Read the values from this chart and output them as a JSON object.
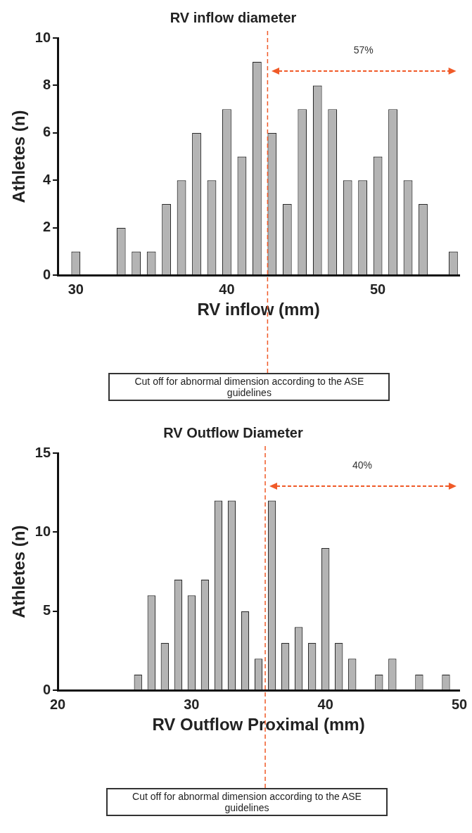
{
  "chart_data": [
    {
      "type": "bar",
      "title": "RV inflow diameter",
      "xlabel": "RV inflow (mm)",
      "ylabel": "Athletes (n)",
      "x": [
        30,
        33,
        34,
        35,
        36,
        37,
        38,
        39,
        40,
        41,
        42,
        43,
        44,
        45,
        46,
        47,
        48,
        49,
        50,
        51,
        52,
        53,
        55
      ],
      "values": [
        1,
        2,
        1,
        1,
        3,
        4,
        6,
        4,
        7,
        5,
        9,
        6,
        3,
        7,
        8,
        7,
        4,
        4,
        5,
        7,
        4,
        3,
        1
      ],
      "color": "#b4b4b4",
      "xlim": [
        28.8,
        55.4
      ],
      "xticks": [
        30,
        40,
        50
      ],
      "ylim": [
        0,
        10
      ],
      "yticks": [
        0,
        2,
        4,
        6,
        8,
        10
      ],
      "grid": false,
      "legend": false,
      "ref_lines": [
        {
          "axis": "x",
          "value": 42.7,
          "label": "Cut off for abnormal dimension according to the ASE guidelines",
          "color": "#f05a28",
          "line_style": "dashed"
        }
      ],
      "annotations": [
        "57%"
      ]
    },
    {
      "type": "bar",
      "title": "RV Outflow Diameter",
      "xlabel": "RV Outflow Proximal (mm)",
      "ylabel": "Athletes (n)",
      "x": [
        26,
        27,
        28,
        29,
        30,
        31,
        32,
        33,
        34,
        35,
        36,
        37,
        38,
        39,
        40,
        41,
        42,
        44,
        45,
        47,
        49
      ],
      "values": [
        1,
        6,
        3,
        7,
        6,
        7,
        12,
        12,
        5,
        2,
        12,
        3,
        4,
        3,
        9,
        3,
        2,
        1,
        2,
        1,
        1
      ],
      "color": "#b4b4b4",
      "xlim": [
        20,
        50
      ],
      "xticks": [
        20,
        30,
        40,
        50
      ],
      "ylim": [
        0,
        15
      ],
      "yticks": [
        0,
        5,
        10,
        15
      ],
      "grid": false,
      "legend": false,
      "ref_lines": [
        {
          "axis": "x",
          "value": 35.5,
          "label": "Cut off for abnormal dimension according to the ASE guidelines",
          "color": "#f05a28",
          "line_style": "dashed"
        }
      ],
      "annotations": [
        "40%"
      ]
    }
  ]
}
